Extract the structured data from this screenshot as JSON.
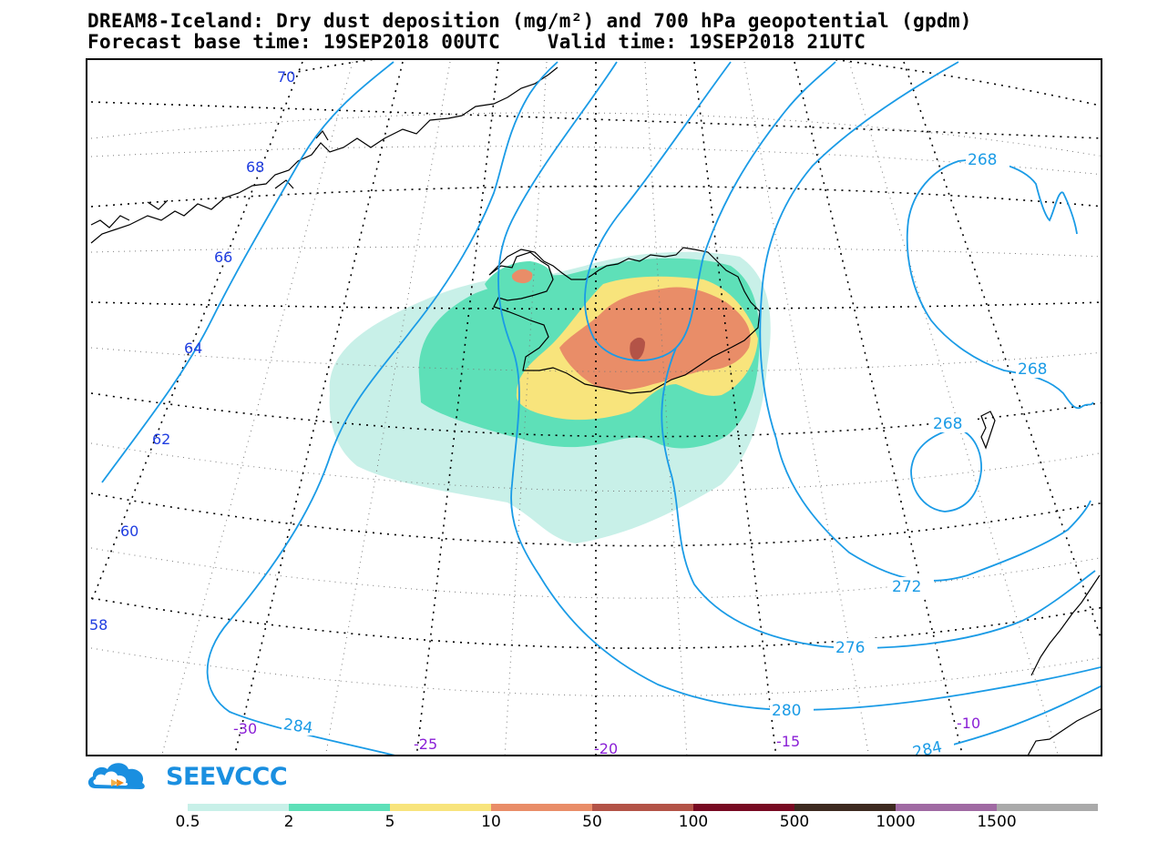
{
  "header": {
    "title_line1": "DREAM8-Iceland: Dry dust deposition (mg/m²) and 700 hPa geopotential (gpdm)",
    "title_line2": "Forecast base time: 19SEP2018 00UTC    Valid time: 19SEP2018 21UTC"
  },
  "map": {
    "latitude_labels": [
      "70",
      "68",
      "66",
      "64",
      "62",
      "60",
      "58"
    ],
    "longitude_labels": [
      "-30",
      "-25",
      "-20",
      "-15",
      "-10"
    ],
    "contour_labels": [
      "268",
      "268",
      "268",
      "272",
      "276",
      "280",
      "284",
      "284"
    ],
    "contour_color": "#1a9be6",
    "coastline_color": "#000000",
    "dust_levels_shown": [
      "0.5",
      "2",
      "5",
      "10",
      "50"
    ]
  },
  "logo": {
    "text": "SEEVCCC",
    "color": "#1a8fe0",
    "icon": "cloud-icon"
  },
  "legend": {
    "labels": [
      "0.5",
      "2",
      "5",
      "10",
      "50",
      "100",
      "500",
      "1000",
      "1500"
    ],
    "colors": [
      "#c8f0e8",
      "#5ee0b8",
      "#f8e47c",
      "#e98d68",
      "#b35347",
      "#780a22",
      "#3d2a20",
      "#a06aa3",
      "#aaaaaa"
    ]
  }
}
